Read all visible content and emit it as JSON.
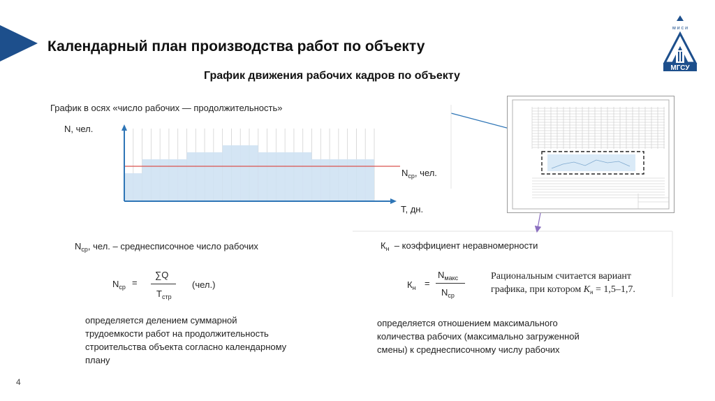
{
  "slide": {
    "title": "Календарный план производства работ по объекту",
    "subtitle": "График движения рабочих кадров по объекту",
    "page_number": "4"
  },
  "logo": {
    "top_text": "м и с и",
    "bottom_text": "МГСУ",
    "color": "#1d4f8c"
  },
  "chart": {
    "caption": "График в осях «число рабочих — продолжительность»",
    "y_axis_label": "N, чел.",
    "x_axis_label": "Т, дн.",
    "avg_line_label_main": "N",
    "avg_line_label_sub": "ср",
    "avg_line_label_rest": ", чел.",
    "bar_color": "#cfe2f3",
    "avg_line_color": "#d9534f"
  },
  "chart_data": {
    "type": "bar",
    "x": [
      0,
      2,
      7,
      11,
      15,
      21,
      28
    ],
    "x_end": 28,
    "values": [
      4,
      6,
      7,
      8,
      7,
      6,
      4
    ],
    "avg": 5,
    "ylim": [
      0,
      10
    ],
    "columns": 28,
    "xlabel": "Т, дн.",
    "ylabel": "N, чел."
  },
  "left_formula": {
    "definition_main": "N",
    "definition_sub": "ср",
    "definition_rest": ", чел. – среднесписочное число рабочих",
    "lhs_main": "N",
    "lhs_sub": "ср",
    "equals": "=",
    "numerator": "∑Q",
    "denominator_main": "Т",
    "denominator_sub": "стр",
    "unit": "(чел.)",
    "description": "определяется делением суммарной трудоемкости работ на продолжительность строительства объекта согласно календарному плану"
  },
  "right_formula": {
    "definition_main": "К",
    "definition_sub": "н",
    "definition_rest": "–  коэффициент неравномерности",
    "lhs_main": "К",
    "lhs_sub": "н",
    "equals": "=",
    "numerator_main": "N",
    "numerator_sub": "макс",
    "denominator_main": "N",
    "denominator_sub": "ср",
    "note_line1": "Рациональным считается вариант",
    "note_line2_pre": "графика, при котором ",
    "note_var": "К",
    "note_var_sub": "н",
    "note_value": " = 1,5–1,7.",
    "description": "определяется отношением максимального количества рабочих (максимально загруженной смены) к среднесписочному числу рабочих"
  }
}
